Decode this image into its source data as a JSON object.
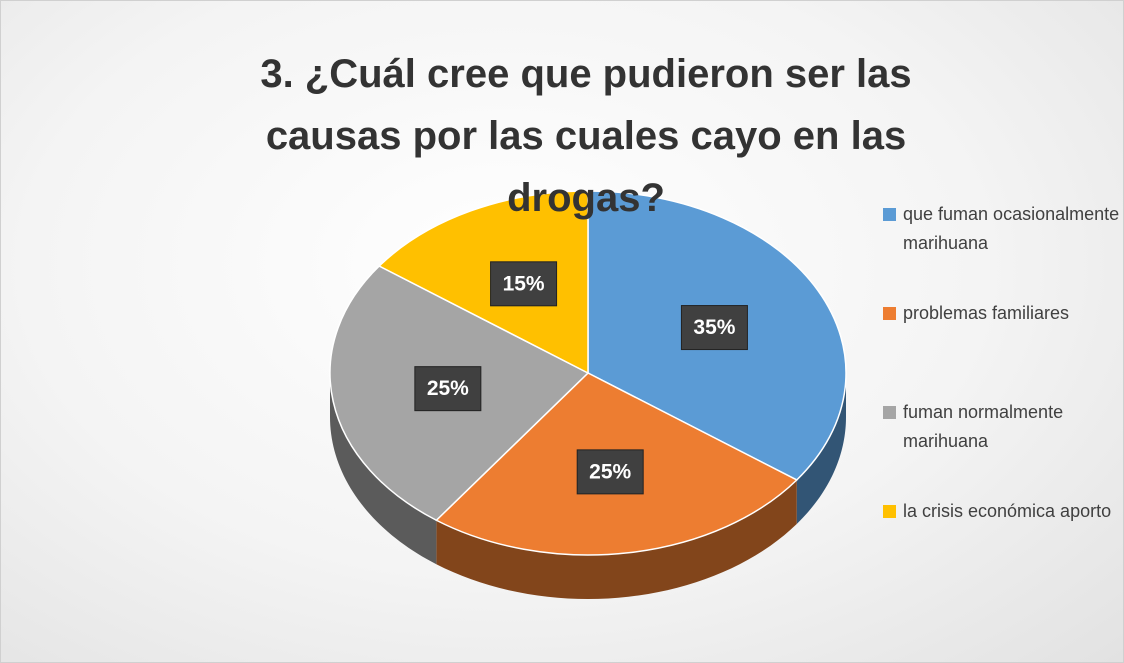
{
  "chart_data": {
    "type": "pie",
    "title": "3. ¿Cuál cree que pudieron ser las causas por las cuales cayo en las drogas?",
    "categories": [
      "que fuman ocasionalmente marihuana",
      "problemas familiares",
      "fuman normalmente marihuana",
      "la crisis económica aporto"
    ],
    "values": [
      35,
      25,
      25,
      15
    ],
    "value_labels": [
      "35%",
      "25%",
      "25%",
      "15%"
    ],
    "colors": [
      "#5b9bd5",
      "#ed7d31",
      "#a5a5a5",
      "#ffc000"
    ],
    "legend": "right"
  }
}
